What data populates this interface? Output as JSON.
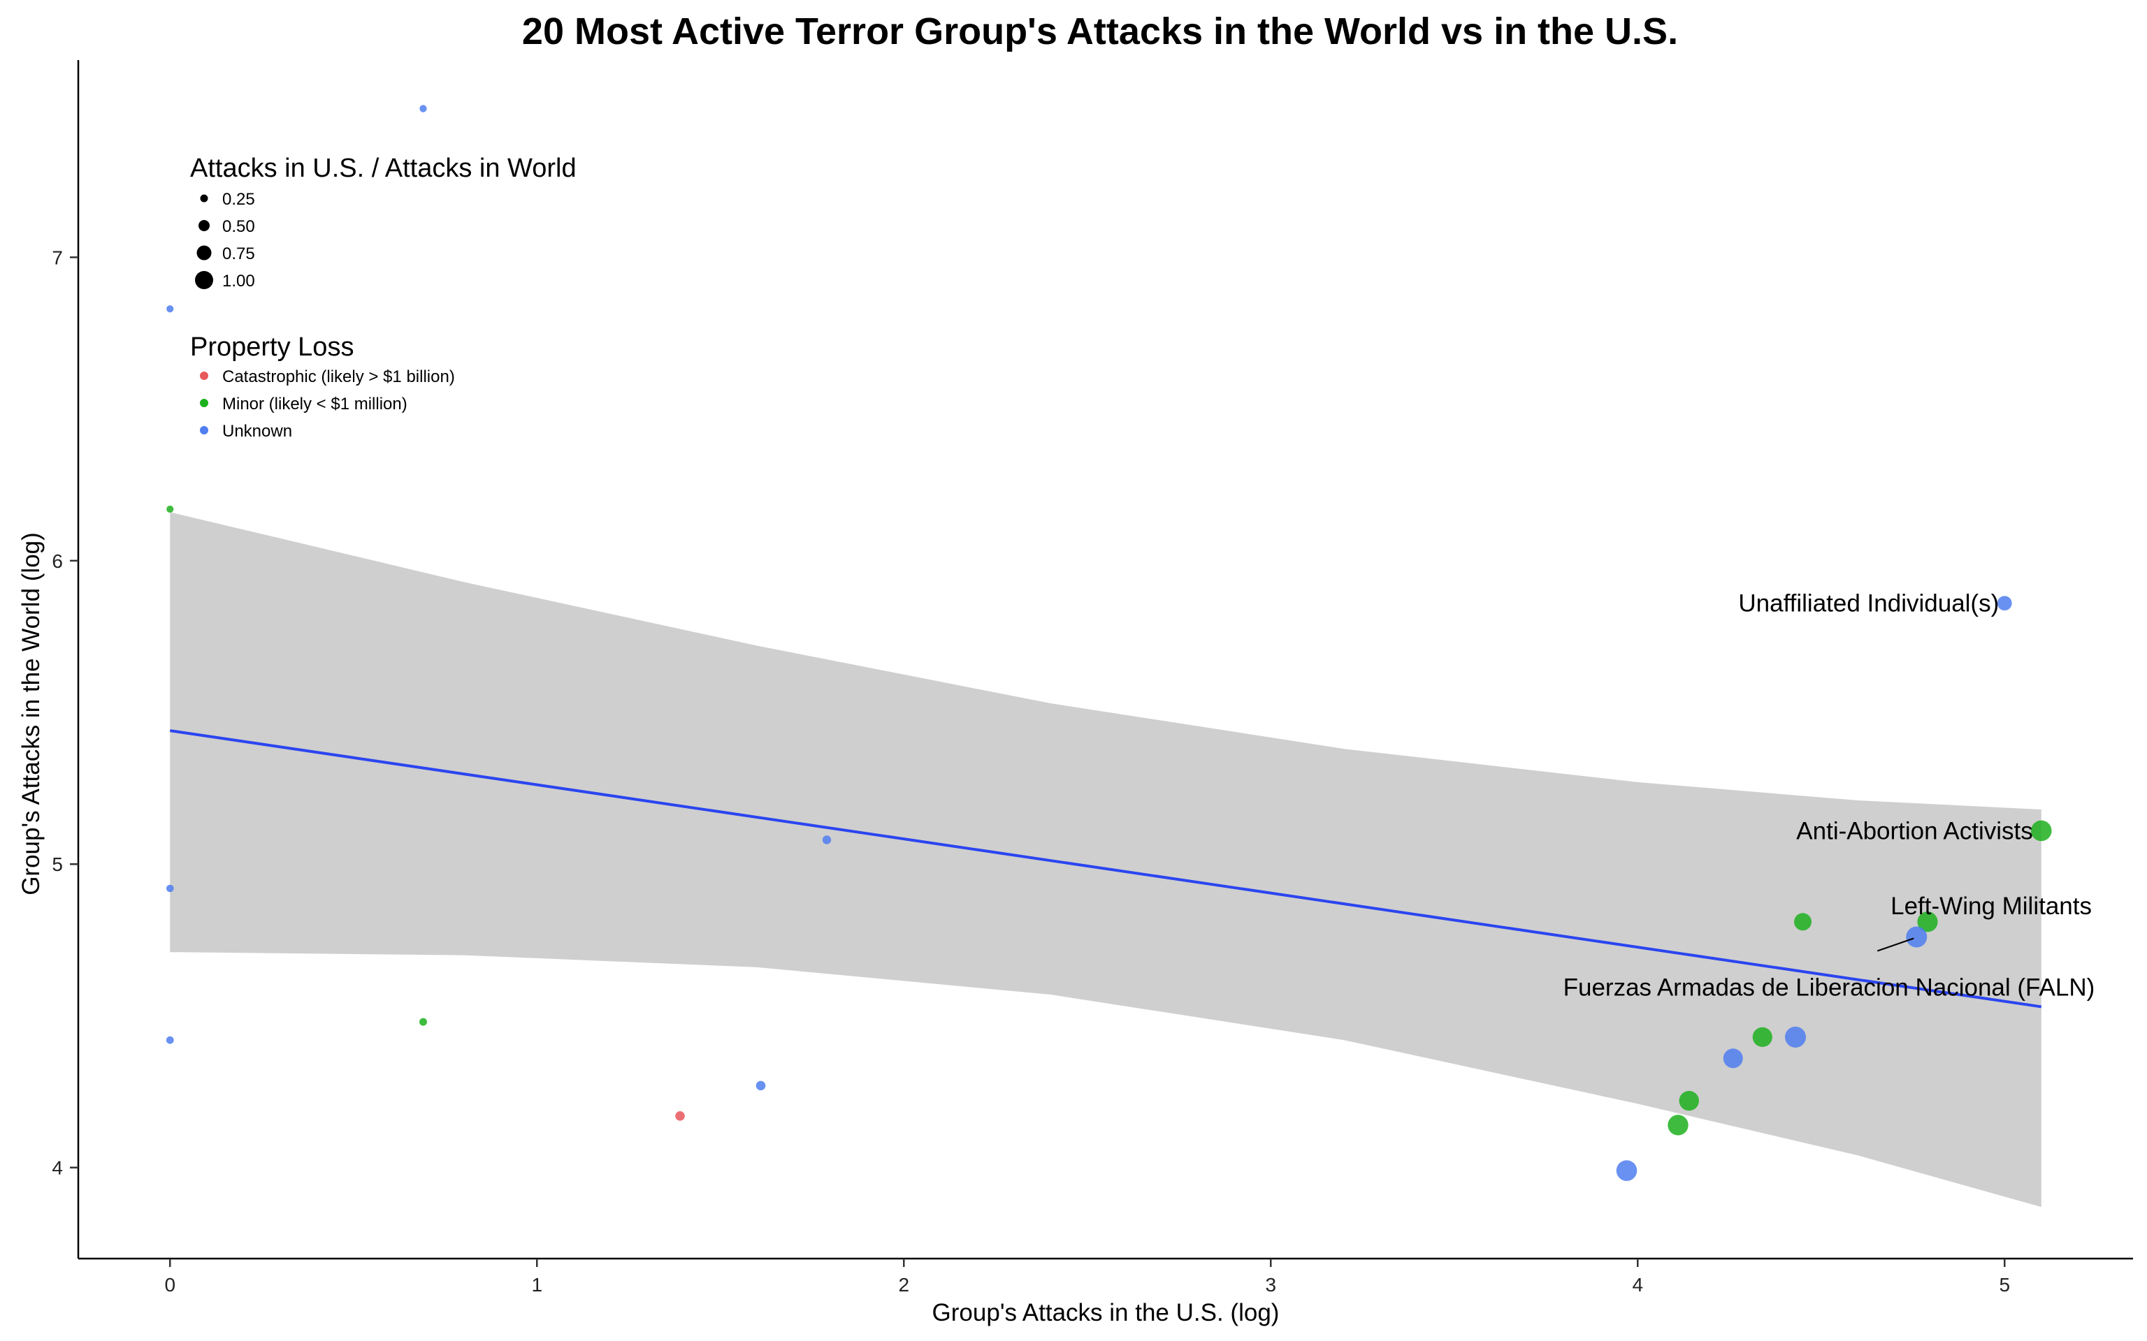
{
  "chart_data": {
    "type": "scatter",
    "title": "20 Most Active Terror Group's Attacks in the World vs in the U.S.",
    "xlabel": "Group's Attacks in the U.S. (log)",
    "ylabel": "Group's Attacks in the World (log)",
    "xlim": [
      -0.25,
      5.35
    ],
    "ylim": [
      3.7,
      7.65
    ],
    "x_ticks": [
      0,
      1,
      2,
      3,
      4,
      5
    ],
    "y_ticks": [
      4,
      5,
      6,
      7
    ],
    "grid": false,
    "legend_placement": "top-left",
    "size_legend": {
      "title": "Attacks in U.S. / Attacks in World",
      "items": [
        {
          "label": "0.25",
          "value": 0.25
        },
        {
          "label": "0.50",
          "value": 0.5
        },
        {
          "label": "0.75",
          "value": 0.75
        },
        {
          "label": "1.00",
          "value": 1.0
        }
      ]
    },
    "color_legend": {
      "title": "Property Loss",
      "items": [
        {
          "label": "Catastrophic (likely > $1 billion)",
          "color": "#E8575A"
        },
        {
          "label": "Minor (likely < $1 million)",
          "color": "#1DB01D"
        },
        {
          "label": "Unknown",
          "color": "#4F7EF0"
        }
      ]
    },
    "points": [
      {
        "x": 0.69,
        "y": 7.49,
        "ratio": 0.02,
        "loss": "Unknown"
      },
      {
        "x": 0.0,
        "y": 6.83,
        "ratio": 0.01,
        "loss": "Unknown"
      },
      {
        "x": 0.0,
        "y": 6.17,
        "ratio": 0.01,
        "loss": "Minor"
      },
      {
        "x": 0.0,
        "y": 4.92,
        "ratio": 0.03,
        "loss": "Unknown"
      },
      {
        "x": 0.0,
        "y": 4.42,
        "ratio": 0.04,
        "loss": "Unknown"
      },
      {
        "x": 0.69,
        "y": 4.48,
        "ratio": 0.05,
        "loss": "Minor"
      },
      {
        "x": 1.39,
        "y": 4.17,
        "ratio": 0.18,
        "loss": "Catastrophic"
      },
      {
        "x": 1.61,
        "y": 4.27,
        "ratio": 0.18,
        "loss": "Unknown"
      },
      {
        "x": 1.79,
        "y": 5.08,
        "ratio": 0.12,
        "loss": "Unknown"
      },
      {
        "x": 5.0,
        "y": 5.86,
        "ratio": 0.54,
        "loss": "Unknown"
      },
      {
        "x": 5.1,
        "y": 5.11,
        "ratio": 0.98,
        "loss": "Minor"
      },
      {
        "x": 4.79,
        "y": 4.81,
        "ratio": 0.96,
        "loss": "Minor"
      },
      {
        "x": 4.45,
        "y": 4.81,
        "ratio": 0.75,
        "loss": "Minor"
      },
      {
        "x": 4.76,
        "y": 4.76,
        "ratio": 1.0,
        "loss": "Unknown"
      },
      {
        "x": 4.43,
        "y": 4.43,
        "ratio": 1.0,
        "loss": "Unknown"
      },
      {
        "x": 4.34,
        "y": 4.43,
        "ratio": 0.91,
        "loss": "Minor"
      },
      {
        "x": 4.26,
        "y": 4.36,
        "ratio": 0.9,
        "loss": "Unknown"
      },
      {
        "x": 4.14,
        "y": 4.22,
        "ratio": 0.92,
        "loss": "Minor"
      },
      {
        "x": 4.11,
        "y": 4.14,
        "ratio": 0.97,
        "loss": "Minor"
      },
      {
        "x": 3.97,
        "y": 3.99,
        "ratio": 0.98,
        "loss": "Unknown"
      }
    ],
    "labels": [
      {
        "text": "Unaffiliated Individual(s)",
        "point_x": 5.0,
        "point_y": 5.86
      },
      {
        "text": "Anti-Abortion Activists",
        "point_x": 5.1,
        "point_y": 5.11
      },
      {
        "text": "Left-Wing Militants",
        "point_x": 4.79,
        "point_y": 4.81
      },
      {
        "text": "Fuerzas Armadas de Liberacion Nacional (FALN)",
        "point_x": 4.76,
        "point_y": 4.76
      }
    ],
    "fit": {
      "method": "linear",
      "x_range": [
        0,
        5.1
      ],
      "line": [
        [
          0,
          5.44
        ],
        [
          5.1,
          4.53
        ]
      ],
      "ribbon_upper": [
        [
          0,
          6.16
        ],
        [
          0.8,
          5.93
        ],
        [
          1.6,
          5.72
        ],
        [
          2.4,
          5.53
        ],
        [
          3.2,
          5.38
        ],
        [
          4.0,
          5.27
        ],
        [
          4.6,
          5.21
        ],
        [
          5.1,
          5.18
        ]
      ],
      "ribbon_lower": [
        [
          0,
          4.71
        ],
        [
          0.8,
          4.7
        ],
        [
          1.6,
          4.66
        ],
        [
          2.4,
          4.57
        ],
        [
          3.2,
          4.42
        ],
        [
          4.0,
          4.21
        ],
        [
          4.6,
          4.04
        ],
        [
          5.1,
          3.87
        ]
      ],
      "line_color": "#2B45F0",
      "ribbon_color": "#CFCFCF"
    }
  }
}
